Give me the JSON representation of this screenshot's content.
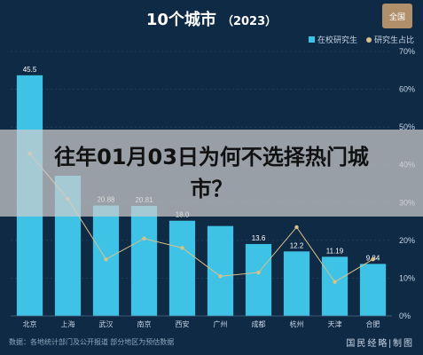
{
  "header": {
    "title": "10个城市",
    "subtitle": "（2023）",
    "logo_text": "全国"
  },
  "legend": {
    "series1": "在校研究生",
    "series2": "研究生占比"
  },
  "overlay": {
    "headline": "往年01月03日为何不选择热门城市？"
  },
  "footer": {
    "note": "数据：各地统计部门及公开报道 部分地区为预估数据",
    "watermark": "国民经略|制图"
  },
  "colors": {
    "bar": "#3ec3e6",
    "line": "#d9c08a",
    "background": "#0f2a44",
    "text": "#ffffff"
  },
  "chart_data": {
    "type": "bar",
    "categories": [
      "北京",
      "上海",
      "武汉",
      "南京",
      "西安",
      "广州",
      "成都",
      "杭州",
      "天津",
      "合肥"
    ],
    "series": [
      {
        "name": "在校研究生",
        "type": "bar",
        "axis": "left",
        "values": [
          45.5,
          26.5,
          20.88,
          20.81,
          18.0,
          17.0,
          13.6,
          12.2,
          11.19,
          9.84
        ]
      },
      {
        "name": "研究生占比",
        "type": "line",
        "axis": "right",
        "values": [
          43,
          31,
          15,
          20.5,
          18,
          10.5,
          11.5,
          23.5,
          9,
          15
        ]
      }
    ],
    "data_labels": [
      "45.5",
      "",
      "20.88",
      "20.81",
      "18.0",
      "",
      "13.6",
      "12.2",
      "11.19",
      "9.84"
    ],
    "ylim": [
      0,
      50
    ],
    "y_ticks": [
      "0",
      "5",
      "10",
      "15",
      "20",
      "25",
      "30",
      "35",
      "40",
      "45",
      "50"
    ],
    "y2lim": [
      0,
      70
    ],
    "y2_ticks": [
      "0%",
      "10%",
      "20%",
      "30%",
      "40%",
      "50%",
      "60%",
      "70%"
    ],
    "grid": true,
    "legend_position": "top-right"
  }
}
